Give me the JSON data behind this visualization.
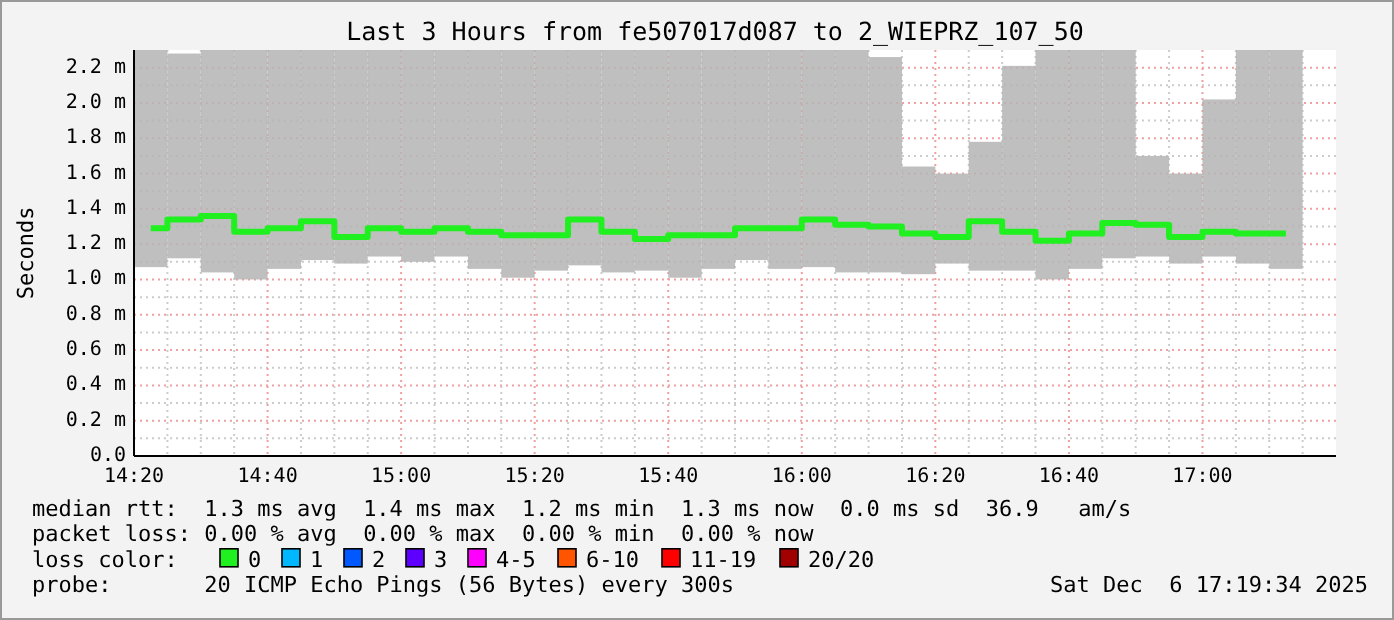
{
  "chart_data": {
    "type": "bar",
    "title": "Last 3 Hours from fe507017d087 to 2_WIEPRZ_107_50",
    "ylabel": "Seconds",
    "legend_title": "loss color:",
    "legend": "bottom",
    "grid": true,
    "xlim": [
      14.3333,
      17.3333
    ],
    "ylim": [
      0,
      2.3
    ],
    "xticks": [
      {
        "value": 14.3333,
        "label": "14:20"
      },
      {
        "value": 14.4167,
        "label": null
      },
      {
        "value": 14.5,
        "label": null
      },
      {
        "value": 14.5833,
        "label": null
      },
      {
        "value": 14.6667,
        "label": "14:40"
      },
      {
        "value": 14.75,
        "label": null
      },
      {
        "value": 14.8333,
        "label": null
      },
      {
        "value": 14.9167,
        "label": null
      },
      {
        "value": 15,
        "label": "15:00"
      },
      {
        "value": 15.0833,
        "label": null
      },
      {
        "value": 15.1667,
        "label": null
      },
      {
        "value": 15.25,
        "label": null
      },
      {
        "value": 15.3333,
        "label": "15:20"
      },
      {
        "value": 15.4167,
        "label": null
      },
      {
        "value": 15.5,
        "label": null
      },
      {
        "value": 15.5833,
        "label": null
      },
      {
        "value": 15.6667,
        "label": "15:40"
      },
      {
        "value": 15.75,
        "label": null
      },
      {
        "value": 15.8333,
        "label": null
      },
      {
        "value": 15.9167,
        "label": null
      },
      {
        "value": 16,
        "label": "16:00"
      },
      {
        "value": 16.0833,
        "label": null
      },
      {
        "value": 16.1667,
        "label": null
      },
      {
        "value": 16.25,
        "label": null
      },
      {
        "value": 16.3333,
        "label": "16:20"
      },
      {
        "value": 16.4167,
        "label": null
      },
      {
        "value": 16.5,
        "label": null
      },
      {
        "value": 16.5833,
        "label": null
      },
      {
        "value": 16.6667,
        "label": "16:40"
      },
      {
        "value": 16.75,
        "label": null
      },
      {
        "value": 16.8333,
        "label": null
      },
      {
        "value": 16.9167,
        "label": null
      },
      {
        "value": 17,
        "label": "17:00"
      },
      {
        "value": 17.0833,
        "label": null
      },
      {
        "value": 17.1667,
        "label": null
      },
      {
        "value": 17.25,
        "label": null
      }
    ],
    "yticks": [
      {
        "value": 0,
        "label": "0.0"
      },
      {
        "value": 0.1,
        "label": null
      },
      {
        "value": 0.2,
        "label": "0.2 m"
      },
      {
        "value": 0.3,
        "label": null
      },
      {
        "value": 0.4,
        "label": "0.4 m"
      },
      {
        "value": 0.5,
        "label": null
      },
      {
        "value": 0.6,
        "label": "0.6 m"
      },
      {
        "value": 0.7,
        "label": null
      },
      {
        "value": 0.8,
        "label": "0.8 m"
      },
      {
        "value": 0.9,
        "label": null
      },
      {
        "value": 1,
        "label": "1.0 m"
      },
      {
        "value": 1.1,
        "label": null
      },
      {
        "value": 1.2,
        "label": "1.2 m"
      },
      {
        "value": 1.3,
        "label": null
      },
      {
        "value": 1.4,
        "label": "1.4 m"
      },
      {
        "value": 1.5,
        "label": null
      },
      {
        "value": 1.6,
        "label": "1.6 m"
      },
      {
        "value": 1.7,
        "label": null
      },
      {
        "value": 1.8,
        "label": "1.8 m"
      },
      {
        "value": 1.9,
        "label": null
      },
      {
        "value": 2,
        "label": "2.0 m"
      },
      {
        "value": 2.1,
        "label": null
      },
      {
        "value": 2.2,
        "label": "2.2 m"
      }
    ],
    "x": [
      14.375,
      14.4583,
      14.5417,
      14.625,
      14.7083,
      14.7917,
      14.875,
      14.9583,
      15.0417,
      15.125,
      15.2083,
      15.2917,
      15.375,
      15.4583,
      15.5417,
      15.625,
      15.7083,
      15.7917,
      15.875,
      15.9583,
      16.0417,
      16.125,
      16.2083,
      16.2917,
      16.375,
      16.4583,
      16.5417,
      16.625,
      16.7083,
      16.7917,
      16.875,
      16.9583,
      17.0417,
      17.125,
      17.2083
    ],
    "series": [
      {
        "color": "#b4b4b4",
        "base": [
          1.07,
          1.12,
          1.04,
          1.0,
          1.06,
          1.11,
          1.09,
          1.13,
          1.1,
          1.13,
          1.06,
          1.01,
          1.05,
          1.08,
          1.04,
          1.05,
          1.01,
          1.06,
          1.11,
          1.06,
          1.07,
          1.04,
          1.04,
          1.03,
          1.09,
          1.05,
          1.05,
          1.0,
          1.06,
          1.12,
          1.13,
          1.09,
          1.13,
          1.09,
          1.06
        ],
        "values": [
          1.23,
          1.16,
          1.26,
          1.3,
          1.24,
          1.19,
          1.21,
          1.17,
          1.2,
          1.17,
          1.24,
          1.29,
          1.25,
          1.22,
          1.26,
          1.25,
          1.29,
          1.24,
          1.19,
          1.24,
          1.23,
          1.26,
          1.22,
          0.61,
          0.51,
          0.73,
          1.16,
          1.3,
          1.24,
          1.18,
          0.57,
          0.51,
          0.89,
          1.21,
          1.24
        ]
      },
      {
        "type": "step",
        "name": "0",
        "color": "#20f020",
        "values": [
          1.29,
          1.34,
          1.36,
          1.27,
          1.29,
          1.33,
          1.24,
          1.29,
          1.27,
          1.29,
          1.27,
          1.25,
          1.25,
          1.34,
          1.27,
          1.23,
          1.25,
          1.25,
          1.29,
          1.29,
          1.34,
          1.31,
          1.3,
          1.26,
          1.24,
          1.33,
          1.27,
          1.22,
          1.26,
          1.32,
          1.31,
          1.24,
          1.27,
          1.26,
          1.26
        ]
      },
      {
        "type": "step",
        "name": "1",
        "color": "#00b8ff",
        "values": [
          null,
          null,
          null,
          null,
          null,
          null,
          null,
          null,
          null,
          null,
          null,
          null,
          null,
          null,
          null,
          null,
          null,
          null,
          null,
          null,
          null,
          null,
          null,
          null,
          null,
          null,
          null,
          null,
          null,
          null,
          null,
          null,
          null,
          null,
          null
        ]
      },
      {
        "type": "step",
        "name": "2",
        "color": "#0059ff",
        "values": [
          null,
          null,
          null,
          null,
          null,
          null,
          null,
          null,
          null,
          null,
          null,
          null,
          null,
          null,
          null,
          null,
          null,
          null,
          null,
          null,
          null,
          null,
          null,
          null,
          null,
          null,
          null,
          null,
          null,
          null,
          null,
          null,
          null,
          null,
          null
        ]
      },
      {
        "type": "step",
        "name": "3",
        "color": "#5e00ff",
        "values": [
          null,
          null,
          null,
          null,
          null,
          null,
          null,
          null,
          null,
          null,
          null,
          null,
          null,
          null,
          null,
          null,
          null,
          null,
          null,
          null,
          null,
          null,
          null,
          null,
          null,
          null,
          null,
          null,
          null,
          null,
          null,
          null,
          null,
          null,
          null
        ]
      },
      {
        "type": "step",
        "name": "4-5",
        "color": "#ff00ff",
        "values": [
          null,
          null,
          null,
          null,
          null,
          null,
          null,
          null,
          null,
          null,
          null,
          null,
          null,
          null,
          null,
          null,
          null,
          null,
          null,
          null,
          null,
          null,
          null,
          null,
          null,
          null,
          null,
          null,
          null,
          null,
          null,
          null,
          null,
          null,
          null
        ]
      },
      {
        "type": "step",
        "name": "6-10",
        "color": "#ff5500",
        "values": [
          null,
          null,
          null,
          null,
          null,
          null,
          null,
          null,
          null,
          null,
          null,
          null,
          null,
          null,
          null,
          null,
          null,
          null,
          null,
          null,
          null,
          null,
          null,
          null,
          null,
          null,
          null,
          null,
          null,
          null,
          null,
          null,
          null,
          null,
          null
        ]
      },
      {
        "type": "step",
        "name": "11-19",
        "color": "#ff0000",
        "values": [
          null,
          null,
          null,
          null,
          null,
          null,
          null,
          null,
          null,
          null,
          null,
          null,
          null,
          null,
          null,
          null,
          null,
          null,
          null,
          null,
          null,
          null,
          null,
          null,
          null,
          null,
          null,
          null,
          null,
          null,
          null,
          null,
          null,
          null,
          null
        ]
      },
      {
        "type": "step",
        "name": "20/20",
        "color": "#a10000",
        "values": [
          null,
          null,
          null,
          null,
          null,
          null,
          null,
          null,
          null,
          null,
          null,
          null,
          null,
          null,
          null,
          null,
          null,
          null,
          null,
          null,
          null,
          null,
          null,
          null,
          null,
          null,
          null,
          null,
          null,
          null,
          null,
          null,
          null,
          null,
          null
        ]
      }
    ],
    "annotations": [
      "median rtt:  1.3 ms avg  1.4 ms max  1.2 ms min  1.3 ms now  0.0 ms sd  36.9   am/s",
      "packet loss: 0.00 % avg  0.00 % max  0.00 % min  0.00 % now",
      "probe:       20 ICMP Echo Pings (56 Bytes) every 300s",
      "Sat Dec  6 17:19:34 2025"
    ]
  }
}
